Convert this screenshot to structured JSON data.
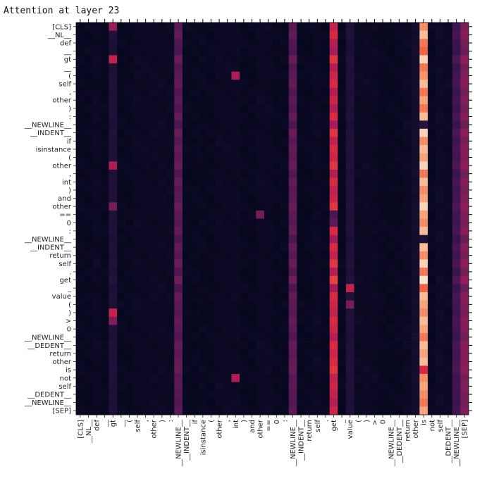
{
  "chart_data": {
    "type": "heatmap",
    "title": "Attention at layer  23",
    "xlabel": "",
    "ylabel": "",
    "tokens": [
      "[CLS]",
      "__NL__",
      "def",
      "__",
      "gt",
      "__",
      "(",
      "self",
      ",",
      "other",
      ")",
      ":",
      "__NEWLINE__",
      "__INDENT__",
      "if",
      "isinstance",
      "(",
      "other",
      ",",
      "int",
      ")",
      "and",
      "other",
      "==",
      "0",
      ":",
      "__NEWLINE__",
      "__INDENT__",
      "return",
      "self",
      ".",
      "get",
      "_",
      "value",
      "(",
      ")",
      ">",
      "0",
      "__NEWLINE__",
      "__DEDENT__",
      "return",
      "other",
      "is",
      "not",
      "self",
      "__DEDENT__",
      "__NEWLINE__",
      "[SEP]"
    ],
    "x_tick_labels": [
      "[CLS]",
      "__NL__",
      "def",
      "__",
      "gt",
      "__",
      "(",
      "self",
      ",",
      "other",
      ")",
      ":",
      "__NEWLINE__",
      "__INDENT__",
      "if",
      "isinstance",
      "(",
      "other",
      ",",
      "int",
      ")",
      "and",
      "other",
      "==",
      "0",
      ":",
      "__NEWLINE__",
      "__INDENT__",
      "return",
      "self",
      ".",
      "get",
      "_",
      "value",
      "(",
      ")",
      ">",
      "0",
      "__NEWLINE__",
      "__DEDENT__",
      "return",
      "other",
      "is",
      "not",
      "self",
      "__DEDENT__",
      "__NEWLINE__",
      "[SEP]"
    ],
    "y_tick_labels": [
      "[CLS]",
      "__NL__",
      "def",
      "__",
      "gt",
      "__",
      "(",
      "self",
      ",",
      "other",
      ")",
      ":",
      "__NEWLINE__",
      "__INDENT__",
      "if",
      "isinstance",
      "(",
      "other",
      ",",
      "int",
      ")",
      "and",
      "other",
      "==",
      "0",
      ":",
      "__NEWLINE__",
      "__INDENT__",
      "return",
      "self",
      ".",
      "get",
      "_",
      "value",
      "(",
      ")",
      ">",
      "0",
      "__NEWLINE__",
      "__DEDENT__",
      "return",
      "other",
      "is",
      "not",
      "self",
      "__DEDENT__",
      "__NEWLINE__",
      "[SEP]"
    ],
    "colormap": "rocket",
    "value_range": [
      0,
      1
    ],
    "column_base": [
      0.02,
      0.02,
      0.03,
      0.02,
      0.12,
      0.02,
      0.02,
      0.03,
      0.03,
      0.03,
      0.03,
      0.03,
      0.32,
      0.02,
      0.02,
      0.02,
      0.02,
      0.03,
      0.03,
      0.03,
      0.02,
      0.02,
      0.03,
      0.03,
      0.02,
      0.02,
      0.32,
      0.02,
      0.02,
      0.03,
      0.02,
      0.62,
      0.02,
      0.12,
      0.03,
      0.03,
      0.03,
      0.02,
      0.02,
      0.02,
      0.03,
      0.06,
      0.92,
      0.02,
      0.04,
      0.03,
      0.25,
      0.42
    ],
    "row_variation": [
      0.4,
      0.6,
      0.3,
      0.2,
      0.7,
      0.3,
      0.5,
      0.6,
      0.3,
      0.5,
      0.3,
      0.6,
      0.2,
      0.7,
      0.4,
      0.6,
      0.5,
      0.7,
      0.3,
      0.6,
      0.4,
      0.5,
      0.7,
      0.5,
      0.4,
      0.6,
      0.2,
      0.6,
      0.4,
      0.7,
      0.3,
      0.8,
      0.2,
      0.6,
      0.5,
      0.4,
      0.6,
      0.5,
      0.3,
      0.6,
      0.5,
      0.6,
      0.7,
      0.4,
      0.5,
      0.4,
      0.3,
      0.5
    ],
    "highlights": [
      {
        "row": 0,
        "col": 4,
        "value": 0.45
      },
      {
        "row": 4,
        "col": 4,
        "value": 0.55
      },
      {
        "row": 6,
        "col": 19,
        "value": 0.5
      },
      {
        "row": 6,
        "col": 42,
        "value": 0.82
      },
      {
        "row": 12,
        "col": 42,
        "value": 0.15
      },
      {
        "row": 17,
        "col": 4,
        "value": 0.5
      },
      {
        "row": 22,
        "col": 4,
        "value": 0.35
      },
      {
        "row": 23,
        "col": 22,
        "value": 0.35
      },
      {
        "row": 23,
        "col": 31,
        "value": 0.25
      },
      {
        "row": 24,
        "col": 31,
        "value": 0.3
      },
      {
        "row": 26,
        "col": 42,
        "value": 0.1
      },
      {
        "row": 32,
        "col": 33,
        "value": 0.55
      },
      {
        "row": 34,
        "col": 33,
        "value": 0.35
      },
      {
        "row": 35,
        "col": 4,
        "value": 0.55
      },
      {
        "row": 36,
        "col": 4,
        "value": 0.4
      },
      {
        "row": 42,
        "col": 42,
        "value": 0.6
      },
      {
        "row": 43,
        "col": 19,
        "value": 0.5
      }
    ]
  }
}
